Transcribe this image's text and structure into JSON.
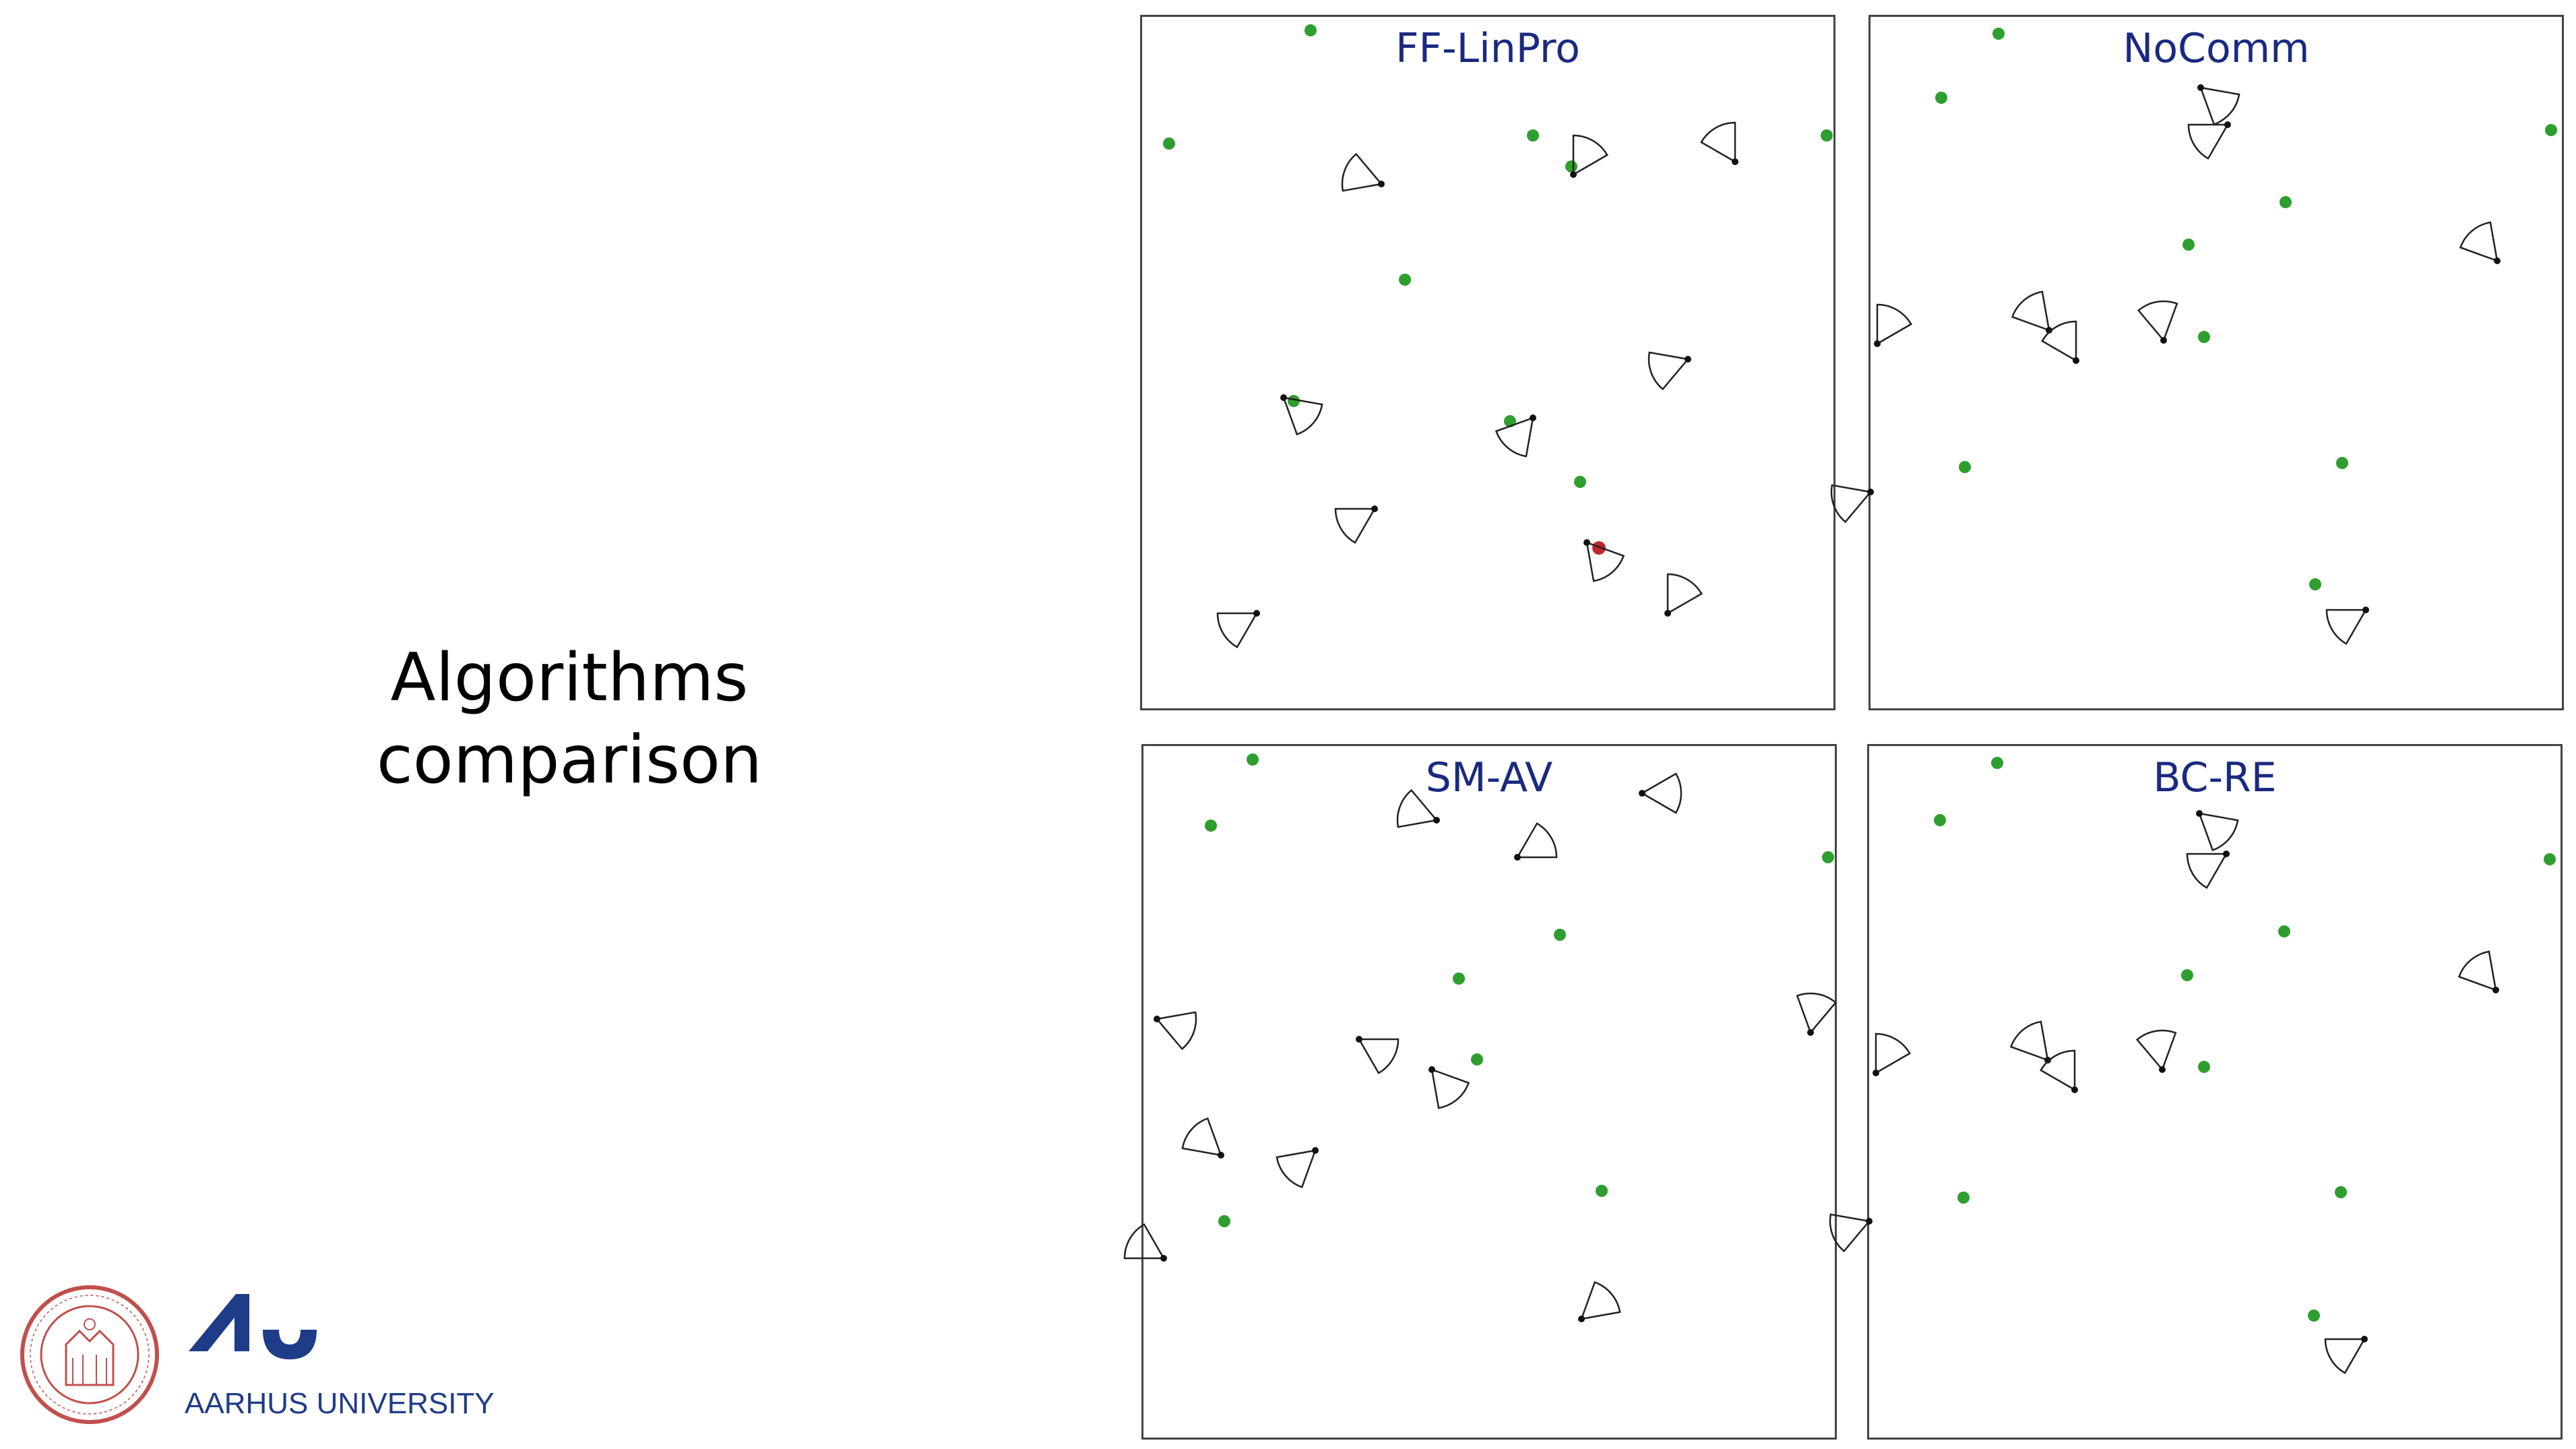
{
  "slide": {
    "title_line1": "Algorithms",
    "title_line2": "comparison"
  },
  "colors": {
    "target_green": "#2e9e2e",
    "target_red": "#c0282d",
    "panel_title": "#1a2a80",
    "university_blue": "#1f3c88",
    "seal_red": "#c0504d"
  },
  "panels": [
    {
      "title": "FF-LinPro",
      "targets": [
        [
          250,
          20
        ],
        [
          40,
          188
        ],
        [
          580,
          176
        ],
        [
          1016,
          176
        ],
        [
          390,
          390
        ],
        [
          637,
          222
        ],
        [
          225,
          570
        ],
        [
          546,
          600
        ],
        [
          650,
          690
        ]
      ],
      "red_targets": [
        [
          678,
          788
        ]
      ],
      "agents": [
        [
          355,
          248,
          200
        ],
        [
          640,
          234,
          300
        ],
        [
          880,
          215,
          240
        ],
        [
          210,
          565,
          40
        ],
        [
          580,
          595,
          130
        ],
        [
          810,
          508,
          160
        ],
        [
          345,
          730,
          150
        ],
        [
          660,
          780,
          50
        ],
        [
          170,
          885,
          150
        ],
        [
          780,
          885,
          300
        ]
      ]
    },
    {
      "title": "NoComm",
      "targets": [
        [
          190,
          25
        ],
        [
          105,
          120
        ],
        [
          1010,
          168
        ],
        [
          616,
          275
        ],
        [
          472,
          338
        ],
        [
          495,
          475
        ],
        [
          140,
          668
        ],
        [
          700,
          662
        ],
        [
          660,
          842
        ]
      ],
      "red_targets": [],
      "agents": [
        [
          490,
          105,
          40
        ],
        [
          530,
          160,
          150
        ],
        [
          265,
          465,
          230
        ],
        [
          305,
          510,
          240
        ],
        [
          435,
          480,
          260
        ],
        [
          10,
          485,
          300
        ],
        [
          0,
          705,
          160
        ],
        [
          930,
          362,
          230
        ],
        [
          735,
          880,
          150
        ]
      ]
    },
    {
      "title": "SM-AV",
      "targets": [
        [
          162,
          20
        ],
        [
          100,
          118
        ],
        [
          1016,
          165
        ],
        [
          618,
          280
        ],
        [
          468,
          345
        ],
        [
          495,
          465
        ],
        [
          680,
          660
        ],
        [
          120,
          705
        ]
      ],
      "red_targets": [],
      "agents": [
        [
          435,
          110,
          200
        ],
        [
          555,
          165,
          330
        ],
        [
          740,
          70,
          0
        ],
        [
          20,
          405,
          20
        ],
        [
          320,
          435,
          30
        ],
        [
          428,
          480,
          50
        ],
        [
          115,
          607,
          220
        ],
        [
          255,
          600,
          140
        ],
        [
          990,
          425,
          280
        ],
        [
          30,
          760,
          210
        ],
        [
          650,
          850,
          320
        ]
      ]
    },
    {
      "title": "BC-RE",
      "targets": [
        [
          190,
          25
        ],
        [
          105,
          110
        ],
        [
          1010,
          168
        ],
        [
          616,
          275
        ],
        [
          472,
          340
        ],
        [
          497,
          476
        ],
        [
          140,
          670
        ],
        [
          700,
          662
        ],
        [
          660,
          845
        ]
      ],
      "red_targets": [],
      "agents": [
        [
          490,
          100,
          40
        ],
        [
          530,
          160,
          150
        ],
        [
          265,
          466,
          230
        ],
        [
          305,
          510,
          240
        ],
        [
          435,
          480,
          260
        ],
        [
          10,
          485,
          300
        ],
        [
          0,
          705,
          160
        ],
        [
          930,
          362,
          230
        ],
        [
          735,
          880,
          150
        ]
      ]
    }
  ],
  "branding": {
    "seal_name": "seal-logo",
    "university_name": "AARHUS UNIVERSITY"
  }
}
